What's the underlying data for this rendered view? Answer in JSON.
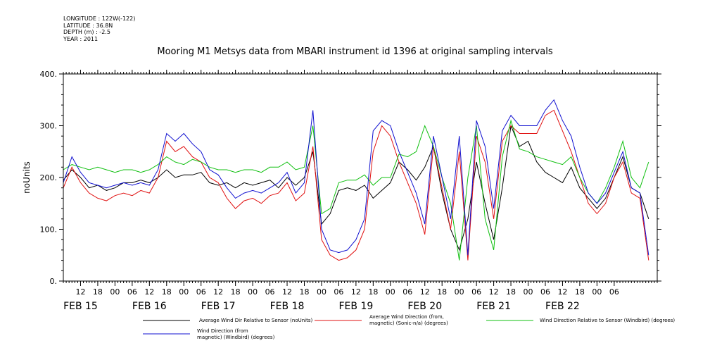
{
  "header": {
    "longitude": "LONGITUDE : 122W(-122)",
    "latitude": "LATITUDE : 36.8N",
    "depth": "DEPTH (m) : -2.5",
    "year": "YEAR : 2011"
  },
  "chart_data": {
    "type": "line",
    "title": "Mooring M1 Metsys data from MBARI instrument id 1396 at original sampling intervals",
    "ylabel": "noUnits",
    "xlabel": "",
    "ylim": [
      0,
      400
    ],
    "y_ticks": [
      "0.",
      "100.",
      "200.",
      "300.",
      "400."
    ],
    "x_hour_ticks": [
      "12",
      "18",
      "00",
      "06",
      "12",
      "18",
      "00",
      "06",
      "12",
      "18",
      "00",
      "06",
      "12",
      "18",
      "00",
      "06",
      "12",
      "18",
      "00",
      "06",
      "12",
      "18",
      "00",
      "06",
      "12",
      "18",
      "00",
      "06",
      "12",
      "18",
      "00",
      "06"
    ],
    "x_day_labels": [
      "FEB 15",
      "FEB 16",
      "FEB 17",
      "FEB 18",
      "FEB 19",
      "FEB 20",
      "FEB 21",
      "FEB 22"
    ],
    "grid": false,
    "legend_position": "bottom",
    "x_unit": "hours since FEB 15 00:00",
    "series": [
      {
        "name": "Average Wind Dir Relative to Sensor (noUnits)",
        "color": "#000000",
        "x": [
          0,
          3,
          6,
          9,
          12,
          15,
          18,
          21,
          24,
          27,
          30,
          33,
          36,
          39,
          42,
          45,
          48,
          51,
          54,
          57,
          60,
          63,
          66,
          69,
          72,
          75,
          78,
          81,
          84,
          87,
          90,
          93,
          96,
          99,
          102,
          105,
          108,
          111,
          114,
          117,
          120,
          123,
          126,
          129,
          132,
          135,
          138,
          141,
          144,
          147,
          150,
          153,
          156,
          159,
          162,
          165,
          168,
          171,
          174,
          177,
          180,
          183,
          186,
          189,
          192,
          195,
          198,
          201,
          204
        ],
        "y": [
          195,
          215,
          200,
          180,
          185,
          175,
          180,
          190,
          190,
          195,
          190,
          200,
          215,
          200,
          205,
          205,
          210,
          190,
          185,
          190,
          180,
          190,
          185,
          190,
          195,
          180,
          200,
          185,
          200,
          250,
          110,
          130,
          175,
          180,
          175,
          185,
          160,
          175,
          190,
          230,
          215,
          195,
          220,
          260,
          170,
          100,
          60,
          120,
          230,
          150,
          80,
          180,
          300,
          260,
          270,
          230,
          210,
          200,
          190,
          220,
          180,
          160,
          140,
          160,
          200,
          240,
          180,
          170,
          120
        ]
      },
      {
        "name": "Average Wind Direction (from, magnetic) (Sonic-n/a) (degrees)",
        "color": "#e01010",
        "x": [
          0,
          3,
          6,
          9,
          12,
          15,
          18,
          21,
          24,
          27,
          30,
          33,
          36,
          39,
          42,
          45,
          48,
          51,
          54,
          57,
          60,
          63,
          66,
          69,
          72,
          75,
          78,
          81,
          84,
          87,
          90,
          93,
          96,
          99,
          102,
          105,
          108,
          111,
          114,
          117,
          120,
          123,
          126,
          129,
          132,
          135,
          138,
          141,
          144,
          147,
          150,
          153,
          156,
          159,
          162,
          165,
          168,
          171,
          174,
          177,
          180,
          183,
          186,
          189,
          192,
          195,
          198,
          201,
          204
        ],
        "y": [
          180,
          220,
          190,
          170,
          160,
          155,
          165,
          170,
          165,
          175,
          170,
          200,
          270,
          250,
          260,
          240,
          230,
          200,
          190,
          160,
          140,
          155,
          160,
          150,
          165,
          170,
          190,
          155,
          170,
          260,
          80,
          50,
          40,
          45,
          60,
          100,
          250,
          300,
          280,
          230,
          190,
          150,
          90,
          260,
          180,
          100,
          250,
          40,
          280,
          230,
          120,
          270,
          300,
          285,
          285,
          285,
          320,
          330,
          290,
          250,
          200,
          150,
          130,
          150,
          200,
          230,
          170,
          160,
          40
        ]
      },
      {
        "name": "Wind Direction Relative to Sensor (Windbird) (degrees)",
        "color": "#10c010",
        "x": [
          0,
          3,
          6,
          9,
          12,
          15,
          18,
          21,
          24,
          27,
          30,
          33,
          36,
          39,
          42,
          45,
          48,
          51,
          54,
          57,
          60,
          63,
          66,
          69,
          72,
          75,
          78,
          81,
          84,
          87,
          90,
          93,
          96,
          99,
          102,
          105,
          108,
          111,
          114,
          117,
          120,
          123,
          126,
          129,
          132,
          135,
          138,
          141,
          144,
          147,
          150,
          153,
          156,
          159,
          162,
          165,
          168,
          171,
          174,
          177,
          180,
          183,
          186,
          189,
          192,
          195,
          198,
          201,
          204
        ],
        "y": [
          215,
          225,
          220,
          215,
          220,
          215,
          210,
          215,
          215,
          210,
          215,
          225,
          240,
          230,
          225,
          235,
          230,
          220,
          215,
          215,
          210,
          215,
          215,
          210,
          220,
          220,
          230,
          215,
          220,
          300,
          130,
          140,
          190,
          195,
          195,
          205,
          185,
          200,
          200,
          245,
          240,
          250,
          300,
          260,
          200,
          150,
          40,
          200,
          300,
          120,
          60,
          240,
          310,
          255,
          250,
          240,
          235,
          230,
          225,
          240,
          200,
          170,
          150,
          180,
          220,
          270,
          200,
          180,
          230
        ]
      },
      {
        "name": "Wind Direction (from, magnetic) (Windbird) (degrees)",
        "color": "#1010d0",
        "x": [
          0,
          3,
          6,
          9,
          12,
          15,
          18,
          21,
          24,
          27,
          30,
          33,
          36,
          39,
          42,
          45,
          48,
          51,
          54,
          57,
          60,
          63,
          66,
          69,
          72,
          75,
          78,
          81,
          84,
          87,
          90,
          93,
          96,
          99,
          102,
          105,
          108,
          111,
          114,
          117,
          120,
          123,
          126,
          129,
          132,
          135,
          138,
          141,
          144,
          147,
          150,
          153,
          156,
          159,
          162,
          165,
          168,
          171,
          174,
          177,
          180,
          183,
          186,
          189,
          192,
          195,
          198,
          201,
          204
        ],
        "y": [
          190,
          240,
          210,
          190,
          185,
          180,
          185,
          190,
          185,
          190,
          185,
          215,
          285,
          270,
          285,
          265,
          250,
          215,
          205,
          180,
          160,
          170,
          175,
          170,
          180,
          190,
          210,
          170,
          190,
          330,
          100,
          60,
          55,
          60,
          80,
          120,
          290,
          310,
          300,
          250,
          210,
          170,
          110,
          280,
          200,
          120,
          280,
          50,
          310,
          260,
          140,
          290,
          320,
          300,
          300,
          300,
          330,
          350,
          310,
          280,
          220,
          170,
          150,
          170,
          210,
          250,
          180,
          170,
          50
        ]
      }
    ]
  },
  "legend_labels": {
    "black_1": "Average Wind Dir Relative to Sensor (noUnits)",
    "red_1": "Average Wind Direction (from,",
    "red_2": "magnetic) (Sonic-n/a) (degrees)",
    "green_1": "Wind Direction Relative to Sensor (Windbird) (degrees)",
    "blue_1": "Wind Direction (from",
    "blue_2": "magnetic) (Windbird) (degrees)"
  }
}
